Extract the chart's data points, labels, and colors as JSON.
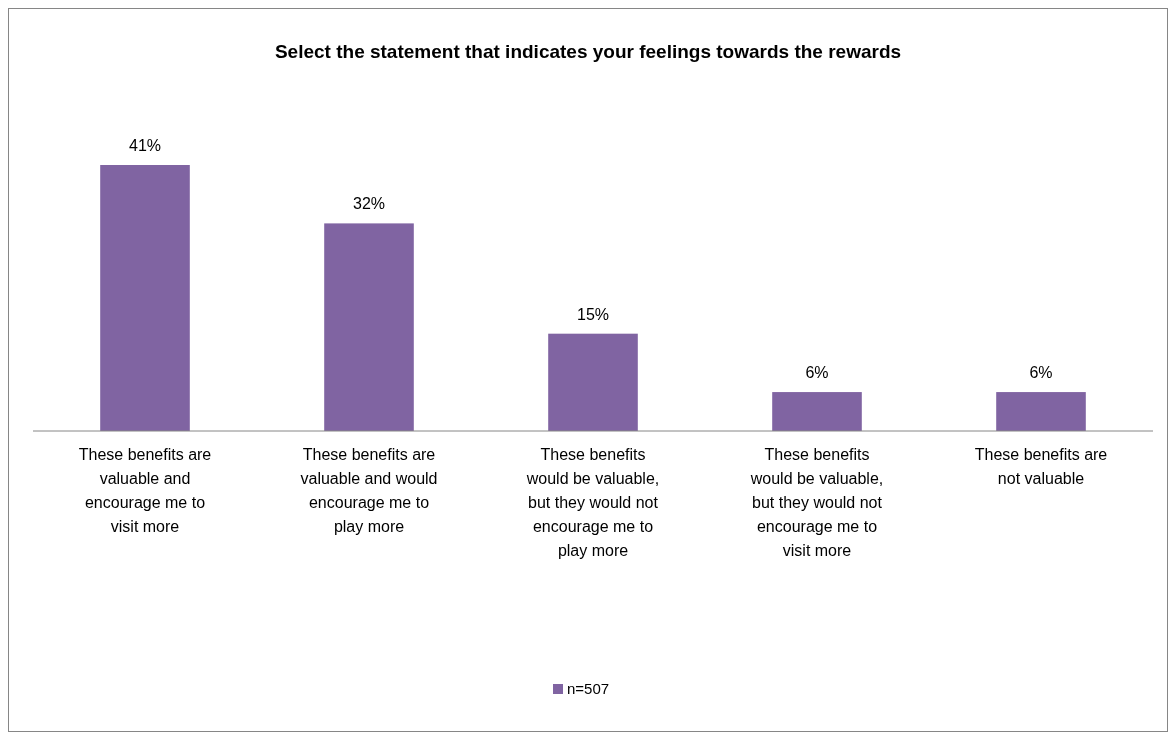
{
  "chart_data": {
    "type": "bar",
    "title": "Select the statement that indicates your feelings towards the rewards",
    "categories": [
      "These benefits are valuable and encourage me to visit more",
      "These benefits are valuable and would encourage me to play more",
      "These benefits would be valuable, but they would not encourage me to play more",
      "These benefits would be valuable, but they would not encourage me to visit more",
      "These benefits are not valuable"
    ],
    "series": [
      {
        "name": "n=507",
        "color": "#8064a2",
        "values": [
          41,
          32,
          15,
          6,
          6
        ],
        "value_labels": [
          "41%",
          "32%",
          "15%",
          "6%",
          "6%"
        ]
      }
    ],
    "legend": "bottom"
  }
}
